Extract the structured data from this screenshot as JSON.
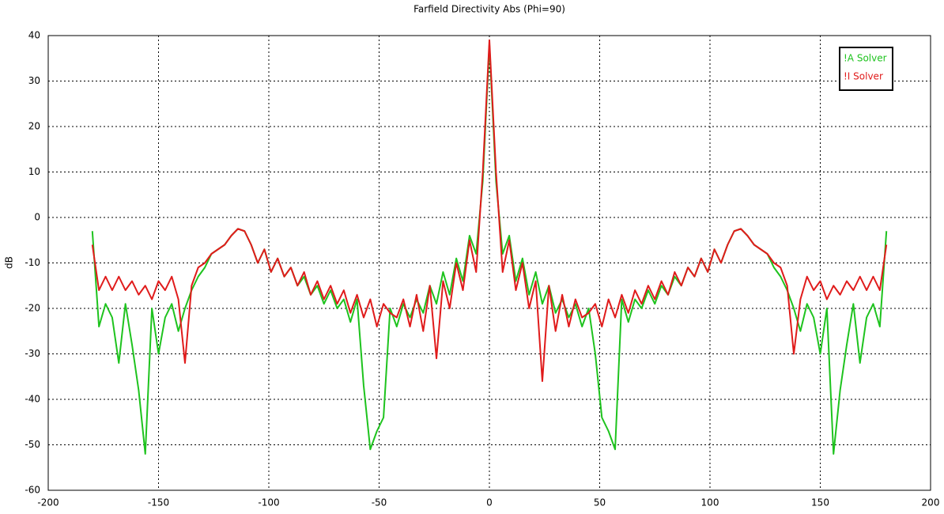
{
  "chart_data": {
    "type": "line",
    "title": "Farfield Directivity Abs (Phi=90)",
    "y_label": "dB",
    "x": [
      -180,
      -177,
      -174,
      -171,
      -168,
      -165,
      -162,
      -159,
      -156,
      -153,
      -150,
      -147,
      -144,
      -141,
      -138,
      -135,
      -132,
      -129,
      -126,
      -123,
      -120,
      -117,
      -114,
      -111,
      -108,
      -105,
      -102,
      -99,
      -96,
      -93,
      -90,
      -87,
      -84,
      -81,
      -78,
      -75,
      -72,
      -69,
      -66,
      -63,
      -60,
      -57,
      -54,
      -51,
      -48,
      -45,
      -42,
      -39,
      -36,
      -33,
      -30,
      -27,
      -24,
      -21,
      -18,
      -15,
      -12,
      -9,
      -6,
      -3,
      0,
      3,
      6,
      9,
      12,
      15,
      18,
      21,
      24,
      27,
      30,
      33,
      36,
      39,
      42,
      45,
      48,
      51,
      54,
      57,
      60,
      63,
      66,
      69,
      72,
      75,
      78,
      81,
      84,
      87,
      90,
      93,
      96,
      99,
      102,
      105,
      108,
      111,
      114,
      117,
      120,
      123,
      126,
      129,
      132,
      135,
      138,
      141,
      144,
      147,
      150,
      153,
      156,
      159,
      162,
      165,
      168,
      171,
      174,
      177,
      180
    ],
    "series": [
      {
        "name": "!A Solver",
        "color": "#1ec31e",
        "values": [
          -3,
          -24,
          -19,
          -22,
          -32,
          -19,
          -28,
          -38,
          -52,
          -20,
          -30,
          -22,
          -19,
          -25,
          -20,
          -16,
          -13,
          -11,
          -8,
          -7,
          -6,
          -4,
          -2.5,
          -3,
          -6,
          -10,
          -7,
          -12,
          -9,
          -13,
          -11,
          -15,
          -13,
          -17,
          -15,
          -19,
          -16,
          -20,
          -18,
          -23,
          -18,
          -37,
          -51,
          -47,
          -44,
          -20,
          -24,
          -19,
          -22,
          -18,
          -21,
          -15,
          -19,
          -12,
          -17,
          -9,
          -14,
          -4,
          -8,
          8,
          38,
          8,
          -8,
          -4,
          -14,
          -9,
          -17,
          -12,
          -19,
          -15,
          -21,
          -18,
          -22,
          -19,
          -24,
          -20,
          -30,
          -44,
          -47,
          -51,
          -18,
          -23,
          -18,
          -20,
          -16,
          -19,
          -15,
          -17,
          -13,
          -15,
          -11,
          -13,
          -9,
          -12,
          -7,
          -10,
          -6,
          -3,
          -2.5,
          -4,
          -6,
          -7,
          -8,
          -11,
          -13,
          -16,
          -20,
          -25,
          -19,
          -22,
          -30,
          -20,
          -52,
          -38,
          -28,
          -19,
          -32,
          -22,
          -19,
          -24,
          -3
        ]
      },
      {
        "name": "!I Solver",
        "color": "#e01b1b",
        "values": [
          -6,
          -16,
          -13,
          -16,
          -13,
          -16,
          -14,
          -17,
          -15,
          -18,
          -14,
          -16,
          -13,
          -18,
          -32,
          -15,
          -11,
          -10,
          -8,
          -7,
          -6,
          -4,
          -2.5,
          -3,
          -6,
          -10,
          -7,
          -12,
          -9,
          -13,
          -11,
          -15,
          -12,
          -17,
          -14,
          -18,
          -15,
          -19,
          -16,
          -21,
          -17,
          -22,
          -18,
          -24,
          -19,
          -21,
          -22,
          -18,
          -24,
          -17,
          -25,
          -15,
          -31,
          -14,
          -20,
          -10,
          -16,
          -5,
          -12,
          10,
          39,
          10,
          -12,
          -5,
          -16,
          -10,
          -20,
          -14,
          -36,
          -15,
          -25,
          -17,
          -24,
          -18,
          -22,
          -21,
          -19,
          -24,
          -18,
          -22,
          -17,
          -21,
          -16,
          -19,
          -15,
          -18,
          -14,
          -17,
          -12,
          -15,
          -11,
          -13,
          -9,
          -12,
          -7,
          -10,
          -6,
          -3,
          -2.5,
          -4,
          -6,
          -7,
          -8,
          -10,
          -11,
          -15,
          -30,
          -18,
          -13,
          -16,
          -14,
          -18,
          -15,
          -17,
          -14,
          -16,
          -13,
          -16,
          -13,
          -16,
          -6
        ]
      }
    ],
    "xlim": [
      -200,
      200
    ],
    "xticks": [
      -200,
      -150,
      -100,
      -50,
      0,
      50,
      100,
      150,
      200
    ],
    "ylim": [
      -60,
      40
    ],
    "yticks": [
      -60,
      -50,
      -40,
      -30,
      -20,
      -10,
      0,
      10,
      20,
      30,
      40
    ],
    "grid": true,
    "legend": "upper right"
  }
}
